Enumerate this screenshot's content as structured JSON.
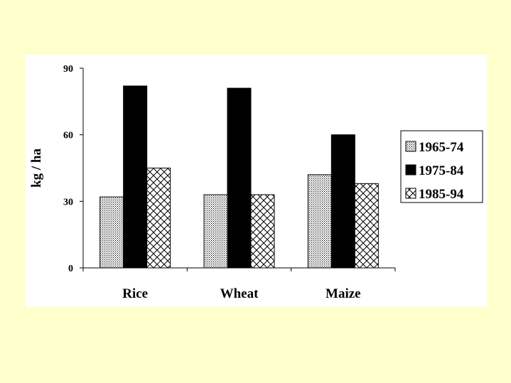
{
  "chart_data": {
    "type": "bar",
    "categories": [
      "Rice",
      "Wheat",
      "Maize"
    ],
    "series": [
      {
        "name": "1965-74",
        "values": [
          32,
          33,
          42
        ],
        "pattern": "dots"
      },
      {
        "name": "1975-84",
        "values": [
          82,
          81,
          60
        ],
        "pattern": "solid"
      },
      {
        "name": "1985-94",
        "values": [
          45,
          33,
          38
        ],
        "pattern": "crosshatch"
      }
    ],
    "title": "",
    "xlabel": "",
    "ylabel": "kg / ha",
    "ylim": [
      0,
      90
    ],
    "yticks": [
      0,
      30,
      60,
      90
    ],
    "grid": false,
    "legend_position": "right",
    "colors": {
      "background": "#ffffcc",
      "panel": "#ffffff",
      "ink": "#000000"
    }
  }
}
